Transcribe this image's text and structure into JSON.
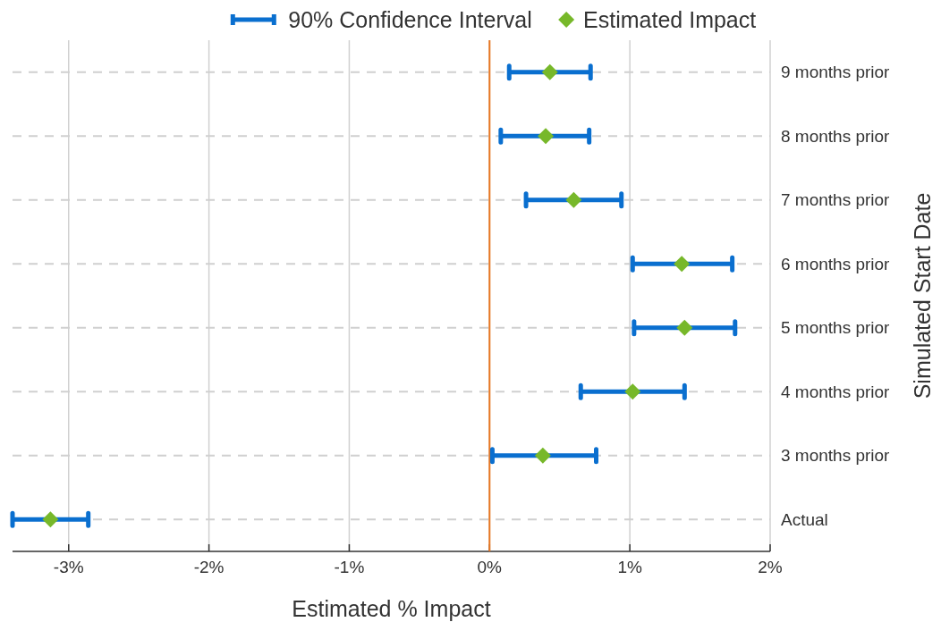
{
  "chart_data": {
    "type": "scatter",
    "orientation": "horizontal",
    "xlabel": "Estimated % Impact",
    "ylabel": "Simulated Start Date",
    "categories": [
      "9 months prior",
      "8 months prior",
      "7 months prior",
      "6 months prior",
      "5 months prior",
      "4 months prior",
      "3 months prior",
      "Actual"
    ],
    "series": [
      {
        "name": "90% Confidence Interval",
        "type": "bar",
        "color": "#0a6fcf",
        "base": [
          0.14,
          0.08,
          0.26,
          1.02,
          1.03,
          0.65,
          0.02,
          -3.4
        ],
        "values": [
          0.58,
          0.63,
          0.68,
          0.71,
          0.72,
          0.74,
          0.74,
          0.54
        ]
      },
      {
        "name": "Estimated Impact",
        "color": "#77b82a",
        "marker": "diamond",
        "values": [
          0.43,
          0.4,
          0.6,
          1.37,
          1.39,
          1.02,
          0.38,
          -3.13
        ]
      }
    ],
    "xlim": [
      -3.4,
      2
    ],
    "xticks": [
      {
        "value": -3,
        "label": "-3%"
      },
      {
        "value": -2,
        "label": "-2%"
      },
      {
        "value": -1,
        "label": "-1%"
      },
      {
        "value": 0,
        "label": "0%"
      },
      {
        "value": 1,
        "label": "1%"
      },
      {
        "value": 2,
        "label": "2%"
      }
    ],
    "ref_lines": [
      {
        "axis": "x",
        "value": 0,
        "label": null,
        "color": "#e87722"
      }
    ],
    "grid": true,
    "legend": "top"
  }
}
